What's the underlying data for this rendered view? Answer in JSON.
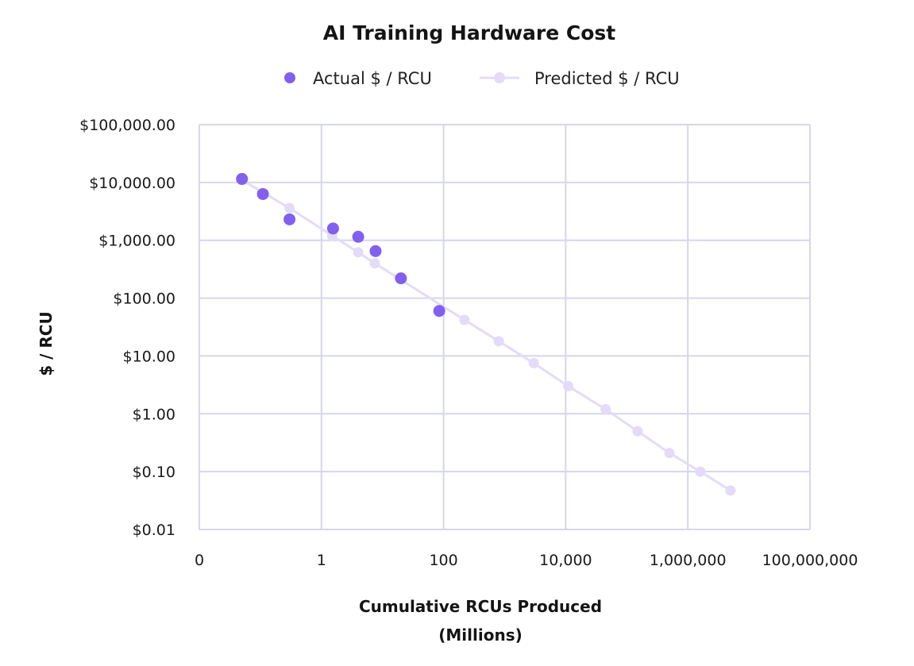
{
  "chart_data": {
    "type": "scatter",
    "title": "AI Training Hardware Cost",
    "xlabel_line1": "Cumulative RCUs Produced",
    "xlabel_line2": "(Millions)",
    "ylabel": "$ / RCU",
    "x_scale": "log",
    "y_scale": "log",
    "xlim": [
      0.01,
      100000000
    ],
    "ylim": [
      0.01,
      100000
    ],
    "x_ticks": [
      {
        "value": 0.01,
        "label": "0"
      },
      {
        "value": 1,
        "label": "1"
      },
      {
        "value": 100,
        "label": "100"
      },
      {
        "value": 10000,
        "label": "10,000"
      },
      {
        "value": 1000000,
        "label": "1,000,000"
      },
      {
        "value": 100000000,
        "label": "100,000,000"
      }
    ],
    "y_ticks": [
      {
        "value": 0.01,
        "label": "$0.01"
      },
      {
        "value": 0.1,
        "label": "$0.10"
      },
      {
        "value": 1,
        "label": "$1.00"
      },
      {
        "value": 10,
        "label": "$10.00"
      },
      {
        "value": 100,
        "label": "$100.00"
      },
      {
        "value": 1000,
        "label": "$1,000.00"
      },
      {
        "value": 10000,
        "label": "$10,000.00"
      },
      {
        "value": 100000,
        "label": "$100,000.00"
      }
    ],
    "grid": true,
    "legend_position": "top",
    "series": [
      {
        "name": "Predicted $ / RCU",
        "style": "line-with-markers",
        "color": "#e4dbf9",
        "points": [
          {
            "x": 0.05,
            "y": 11000
          },
          {
            "x": 0.3,
            "y": 3600
          },
          {
            "x": 1.5,
            "y": 1200
          },
          {
            "x": 4,
            "y": 620
          },
          {
            "x": 7.5,
            "y": 400
          },
          {
            "x": 220,
            "y": 42
          },
          {
            "x": 800,
            "y": 18
          },
          {
            "x": 3000,
            "y": 7.5
          },
          {
            "x": 11000,
            "y": 3
          },
          {
            "x": 45000,
            "y": 1.2
          },
          {
            "x": 150000,
            "y": 0.5
          },
          {
            "x": 500000,
            "y": 0.21
          },
          {
            "x": 1600000,
            "y": 0.1
          },
          {
            "x": 5000000,
            "y": 0.047
          }
        ]
      },
      {
        "name": "Actual $ / RCU",
        "style": "markers",
        "color": "#8160ef",
        "points": [
          {
            "x": 0.05,
            "y": 11500
          },
          {
            "x": 0.11,
            "y": 6300
          },
          {
            "x": 0.3,
            "y": 2300
          },
          {
            "x": 1.55,
            "y": 1600
          },
          {
            "x": 4,
            "y": 1150
          },
          {
            "x": 7.7,
            "y": 650
          },
          {
            "x": 20,
            "y": 220
          },
          {
            "x": 85,
            "y": 60
          }
        ]
      }
    ]
  }
}
